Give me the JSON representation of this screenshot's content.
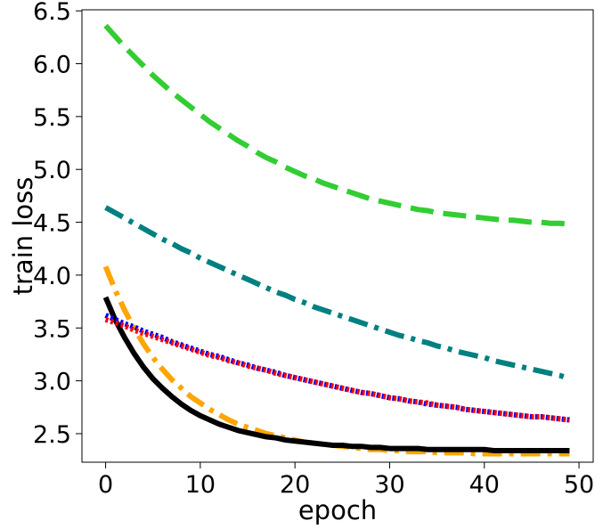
{
  "chart_data": {
    "type": "line",
    "title": "",
    "xlabel": "epoch",
    "ylabel": "train loss",
    "xlim": [
      -2.5,
      51.5
    ],
    "ylim": [
      2.23,
      6.51
    ],
    "xticks": [
      0,
      10,
      20,
      30,
      40,
      50
    ],
    "yticks": [
      2.5,
      3.0,
      3.5,
      4.0,
      4.5,
      5.0,
      5.5,
      6.0,
      6.5
    ],
    "xtick_labels": [
      "0",
      "10",
      "20",
      "30",
      "40",
      "50"
    ],
    "ytick_labels": [
      "2.5",
      "3.0",
      "3.5",
      "4.0",
      "4.5",
      "5.0",
      "5.5",
      "6.0",
      "6.5"
    ],
    "grid": false,
    "legend": "none",
    "series": [
      {
        "color": "#32CD32",
        "style": "dashed",
        "x": [
          0,
          1,
          2,
          3,
          4,
          5,
          6,
          7,
          8,
          9,
          10,
          11,
          12,
          13,
          14,
          15,
          16,
          17,
          18,
          19,
          20,
          21,
          22,
          23,
          24,
          25,
          26,
          27,
          28,
          29,
          30,
          31,
          32,
          33,
          34,
          35,
          36,
          37,
          38,
          39,
          40,
          41,
          42,
          43,
          44,
          45,
          46,
          47,
          48,
          49
        ],
        "values": [
          6.36,
          6.26,
          6.16,
          6.07,
          5.98,
          5.89,
          5.81,
          5.73,
          5.66,
          5.59,
          5.52,
          5.45,
          5.39,
          5.33,
          5.27,
          5.22,
          5.16,
          5.11,
          5.07,
          5.02,
          4.98,
          4.94,
          4.91,
          4.87,
          4.84,
          4.81,
          4.78,
          4.75,
          4.72,
          4.7,
          4.68,
          4.66,
          4.64,
          4.62,
          4.61,
          4.59,
          4.58,
          4.57,
          4.56,
          4.55,
          4.54,
          4.53,
          4.52,
          4.52,
          4.51,
          4.5,
          4.5,
          4.49,
          4.49,
          4.48
        ]
      },
      {
        "color": "#008080",
        "style": "dashdot",
        "x": [
          0,
          1,
          2,
          3,
          4,
          5,
          6,
          7,
          8,
          9,
          10,
          11,
          12,
          13,
          14,
          15,
          16,
          17,
          18,
          19,
          20,
          21,
          22,
          23,
          24,
          25,
          26,
          27,
          28,
          29,
          30,
          31,
          32,
          33,
          34,
          35,
          36,
          37,
          38,
          39,
          40,
          41,
          42,
          43,
          44,
          45,
          46,
          47,
          48,
          49
        ],
        "values": [
          4.64,
          4.59,
          4.54,
          4.49,
          4.44,
          4.39,
          4.34,
          4.3,
          4.25,
          4.21,
          4.16,
          4.12,
          4.08,
          4.04,
          4.0,
          3.96,
          3.92,
          3.88,
          3.84,
          3.81,
          3.77,
          3.74,
          3.7,
          3.67,
          3.64,
          3.61,
          3.58,
          3.55,
          3.52,
          3.49,
          3.46,
          3.43,
          3.41,
          3.38,
          3.36,
          3.33,
          3.31,
          3.28,
          3.26,
          3.24,
          3.22,
          3.19,
          3.17,
          3.15,
          3.13,
          3.11,
          3.09,
          3.07,
          3.05,
          3.02
        ]
      },
      {
        "color": "#FFA500",
        "style": "dashdot",
        "x": [
          0,
          1,
          2,
          3,
          4,
          5,
          6,
          7,
          8,
          9,
          10,
          11,
          12,
          13,
          14,
          15,
          16,
          17,
          18,
          19,
          20,
          21,
          22,
          23,
          24,
          25,
          26,
          27,
          28,
          29,
          30,
          31,
          32,
          33,
          34,
          35,
          36,
          37,
          38,
          39,
          40,
          41,
          42,
          43,
          44,
          45,
          46,
          47,
          48,
          49
        ],
        "values": [
          4.08,
          3.86,
          3.67,
          3.5,
          3.35,
          3.22,
          3.11,
          3.01,
          2.93,
          2.85,
          2.79,
          2.73,
          2.68,
          2.63,
          2.59,
          2.56,
          2.53,
          2.5,
          2.48,
          2.46,
          2.44,
          2.42,
          2.41,
          2.4,
          2.39,
          2.38,
          2.37,
          2.36,
          2.35,
          2.35,
          2.34,
          2.34,
          2.33,
          2.33,
          2.33,
          2.32,
          2.32,
          2.32,
          2.32,
          2.31,
          2.31,
          2.31,
          2.31,
          2.31,
          2.31,
          2.31,
          2.31,
          2.31,
          2.31,
          2.31
        ]
      },
      {
        "color": "#000000",
        "style": "solid",
        "x": [
          0,
          1,
          2,
          3,
          4,
          5,
          6,
          7,
          8,
          9,
          10,
          11,
          12,
          13,
          14,
          15,
          16,
          17,
          18,
          19,
          20,
          21,
          22,
          23,
          24,
          25,
          26,
          27,
          28,
          29,
          30,
          31,
          32,
          33,
          34,
          35,
          36,
          37,
          38,
          39,
          40,
          41,
          42,
          43,
          44,
          45,
          46,
          47,
          48,
          49
        ],
        "values": [
          3.79,
          3.58,
          3.41,
          3.26,
          3.13,
          3.02,
          2.93,
          2.85,
          2.78,
          2.72,
          2.67,
          2.63,
          2.59,
          2.56,
          2.53,
          2.51,
          2.49,
          2.47,
          2.46,
          2.44,
          2.43,
          2.42,
          2.41,
          2.4,
          2.39,
          2.39,
          2.38,
          2.38,
          2.37,
          2.37,
          2.36,
          2.36,
          2.36,
          2.36,
          2.35,
          2.35,
          2.35,
          2.35,
          2.35,
          2.35,
          2.35,
          2.34,
          2.34,
          2.34,
          2.34,
          2.34,
          2.34,
          2.34,
          2.34,
          2.34
        ]
      },
      {
        "color": "#0000FF",
        "style": "dotted",
        "x": [
          0,
          1,
          2,
          3,
          4,
          5,
          6,
          7,
          8,
          9,
          10,
          11,
          12,
          13,
          14,
          15,
          16,
          17,
          18,
          19,
          20,
          21,
          22,
          23,
          24,
          25,
          26,
          27,
          28,
          29,
          30,
          31,
          32,
          33,
          34,
          35,
          36,
          37,
          38,
          39,
          40,
          41,
          42,
          43,
          44,
          45,
          46,
          47,
          48,
          49
        ],
        "values": [
          3.62,
          3.58,
          3.54,
          3.51,
          3.47,
          3.44,
          3.41,
          3.37,
          3.34,
          3.31,
          3.28,
          3.25,
          3.23,
          3.2,
          3.17,
          3.15,
          3.12,
          3.1,
          3.08,
          3.05,
          3.03,
          3.01,
          2.99,
          2.97,
          2.95,
          2.93,
          2.91,
          2.89,
          2.88,
          2.86,
          2.84,
          2.83,
          2.81,
          2.8,
          2.78,
          2.77,
          2.76,
          2.75,
          2.73,
          2.72,
          2.71,
          2.7,
          2.69,
          2.68,
          2.67,
          2.66,
          2.66,
          2.65,
          2.64,
          2.63
        ]
      },
      {
        "color": "#FF0000",
        "style": "dotted",
        "x": [
          0,
          1,
          2,
          3,
          4,
          5,
          6,
          7,
          8,
          9,
          10,
          11,
          12,
          13,
          14,
          15,
          16,
          17,
          18,
          19,
          20,
          21,
          22,
          23,
          24,
          25,
          26,
          27,
          28,
          29,
          30,
          31,
          32,
          33,
          34,
          35,
          36,
          37,
          38,
          39,
          40,
          41,
          42,
          43,
          44,
          45,
          46,
          47,
          48,
          49
        ],
        "values": [
          3.58,
          3.55,
          3.52,
          3.48,
          3.45,
          3.42,
          3.39,
          3.36,
          3.33,
          3.3,
          3.27,
          3.24,
          3.22,
          3.19,
          3.17,
          3.14,
          3.12,
          3.1,
          3.07,
          3.05,
          3.03,
          3.01,
          2.99,
          2.97,
          2.95,
          2.93,
          2.91,
          2.89,
          2.88,
          2.86,
          2.84,
          2.83,
          2.81,
          2.8,
          2.79,
          2.77,
          2.76,
          2.75,
          2.73,
          2.72,
          2.71,
          2.7,
          2.69,
          2.68,
          2.67,
          2.66,
          2.66,
          2.65,
          2.64,
          2.63
        ]
      }
    ]
  }
}
